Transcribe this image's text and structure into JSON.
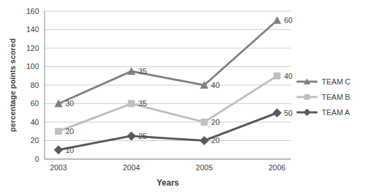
{
  "chart_data": {
    "type": "line",
    "x_label": "Years",
    "y_label": "percentage points scored",
    "categories": [
      "2003",
      "2004",
      "2005",
      "2006"
    ],
    "series": [
      {
        "name": "TEAM A",
        "color": "#595959",
        "marker": "diamond",
        "values": [
          10,
          25,
          20,
          50
        ]
      },
      {
        "name": "TEAM B",
        "color": "#bfbfbf",
        "marker": "square",
        "values": [
          20,
          35,
          20,
          40
        ]
      },
      {
        "name": "TEAM C",
        "color": "#808080",
        "marker": "triangle",
        "values": [
          30,
          35,
          40,
          60
        ]
      }
    ],
    "stacked": true,
    "data_labels": true,
    "ylim": [
      0,
      160
    ],
    "yticks": [
      0,
      20,
      40,
      60,
      80,
      100,
      120,
      140,
      160
    ],
    "grid": true,
    "legend": "right"
  }
}
